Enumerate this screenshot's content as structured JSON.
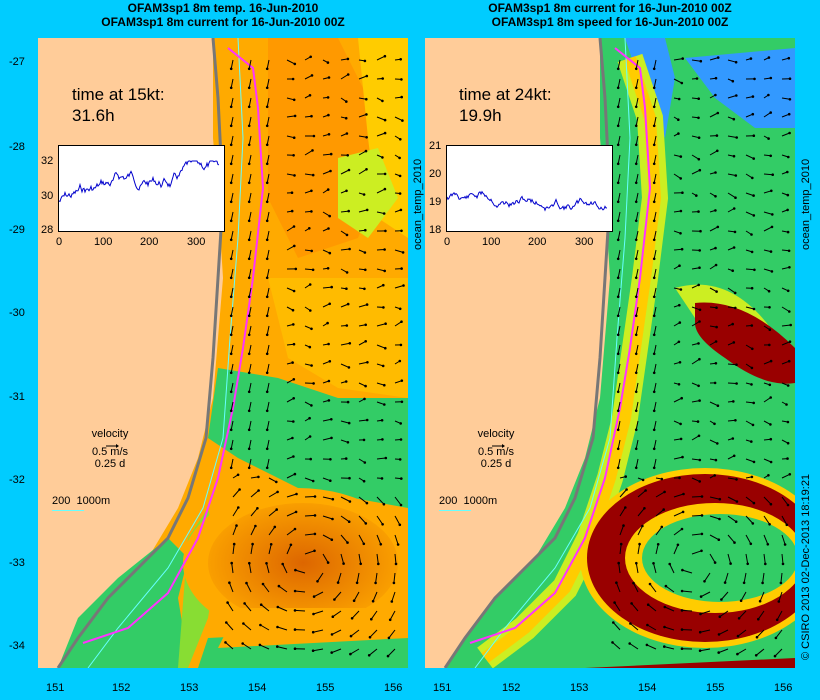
{
  "titles": {
    "left_line1": "OFAM3sp1 8m temp. 16-Jun-2010",
    "left_line2": "OFAM3sp1 8m current for 16-Jun-2010 00Z",
    "right_line1": "OFAM3sp1 8m current for 16-Jun-2010 00Z",
    "right_line2": "OFAM3sp1 8m speed for 16-Jun-2010 00Z"
  },
  "y_ticks": [
    "-27",
    "-28",
    "-29",
    "-30",
    "-31",
    "-32",
    "-33",
    "-34"
  ],
  "x_ticks": [
    "151",
    "152",
    "153",
    "154",
    "155",
    "156"
  ],
  "left_panel": {
    "time_label": "time at 15kt:",
    "time_value": "31.6h",
    "inset_y_ticks": [
      "32",
      "30",
      "28"
    ],
    "inset_x_ticks": [
      "0",
      "100",
      "200",
      "300"
    ],
    "side_label": "ocean_temp_2010"
  },
  "right_panel": {
    "time_label": "time at 24kt:",
    "time_value": "19.9h",
    "inset_y_ticks": [
      "21",
      "20",
      "19",
      "18"
    ],
    "inset_x_ticks": [
      "0",
      "100",
      "200",
      "300"
    ],
    "side_label": "ocean_temp_2010"
  },
  "legend": {
    "title": "velocity",
    "speed": "0.5 m/s",
    "duration": "0.25 d",
    "isobath_label": "200",
    "isobath_label2": "1000m"
  },
  "credit": "© CSIRO 2013   02-Dec-2013 18:19:21",
  "colors": {
    "background": "#00ccff",
    "land": "#ffcc99",
    "route": "#ff33ff",
    "warm": "#ff9900",
    "cool": "#33cc66"
  }
}
